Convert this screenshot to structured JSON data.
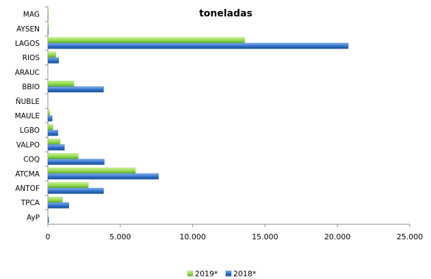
{
  "chart_data": {
    "type": "bar",
    "orientation": "horizontal",
    "title": "toneladas",
    "categories": [
      "MAG",
      "AYSEN",
      "LAGOS",
      "RIOS",
      "ARAUC",
      "BBIO",
      "ÑUBLE",
      "MAULE",
      "LGBO",
      "VALPO",
      "COQ",
      "ATCMA",
      "ANTOF",
      "TPCA",
      "AyP"
    ],
    "series": [
      {
        "name": "2019*",
        "color": "#8ed84a",
        "values": [
          40,
          60,
          13600,
          550,
          0,
          1800,
          0,
          120,
          350,
          850,
          2100,
          6050,
          2800,
          1000,
          0
        ]
      },
      {
        "name": "2018*",
        "color": "#2f6fc6",
        "values": [
          20,
          30,
          20750,
          750,
          0,
          3850,
          0,
          300,
          700,
          1150,
          3900,
          7650,
          3850,
          1450,
          60
        ]
      }
    ],
    "xlim": [
      0,
      25000
    ],
    "xticks": [
      0,
      5000,
      10000,
      15000,
      20000,
      25000
    ],
    "xtick_labels": [
      "0",
      "5.000",
      "10.000",
      "15.000",
      "20.000",
      "25.000"
    ],
    "grid": false,
    "legend_position": "bottom"
  }
}
